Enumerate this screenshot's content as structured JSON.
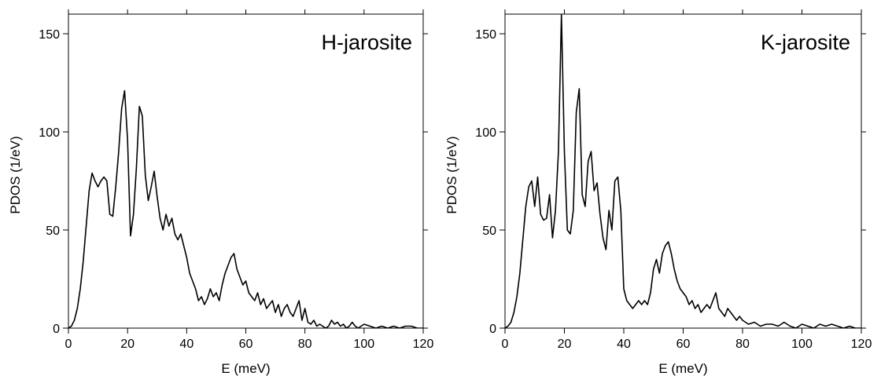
{
  "chart_data": [
    {
      "type": "line",
      "title": "H-jarosite",
      "xlabel": "E (meV)",
      "ylabel": "PDOS (1/eV)",
      "xlim": [
        0,
        120
      ],
      "ylim": [
        0,
        160
      ],
      "xticks": [
        0,
        20,
        40,
        60,
        80,
        100,
        120
      ],
      "yticks": [
        0,
        50,
        100,
        150
      ],
      "grid": false,
      "legend": "none",
      "series": [
        {
          "x": [
            0,
            1,
            2,
            3,
            4,
            5,
            6,
            7,
            8,
            9,
            10,
            11,
            12,
            13,
            14,
            15,
            16,
            17,
            18,
            19,
            20,
            21,
            22,
            23,
            24,
            25,
            26,
            27,
            28,
            29,
            30,
            31,
            32,
            33,
            34,
            35,
            36,
            37,
            38,
            39,
            40,
            41,
            42,
            43,
            44,
            45,
            46,
            47,
            48,
            49,
            50,
            51,
            52,
            53,
            54,
            55,
            56,
            57,
            58,
            59,
            60,
            61,
            62,
            63,
            64,
            65,
            66,
            67,
            68,
            69,
            70,
            71,
            72,
            73,
            74,
            75,
            76,
            77,
            78,
            79,
            80,
            81,
            82,
            83,
            84,
            85,
            86,
            87,
            88,
            89,
            90,
            91,
            92,
            93,
            94,
            95,
            96,
            97,
            98,
            99,
            100,
            102,
            104,
            106,
            108,
            110,
            112,
            114,
            116,
            118,
            120
          ],
          "y": [
            0,
            1,
            4,
            10,
            20,
            34,
            52,
            70,
            79,
            75,
            72,
            75,
            77,
            75,
            58,
            57,
            72,
            90,
            112,
            121,
            96,
            47,
            58,
            82,
            113,
            108,
            78,
            65,
            72,
            80,
            67,
            56,
            50,
            58,
            52,
            56,
            48,
            45,
            48,
            42,
            36,
            28,
            24,
            20,
            14,
            16,
            12,
            15,
            20,
            16,
            18,
            14,
            22,
            28,
            32,
            36,
            38,
            30,
            26,
            22,
            24,
            18,
            16,
            14,
            18,
            12,
            15,
            10,
            12,
            14,
            8,
            12,
            6,
            10,
            12,
            8,
            6,
            10,
            14,
            4,
            10,
            3,
            2,
            4,
            1,
            2,
            1,
            0,
            1,
            4,
            2,
            3,
            1,
            2,
            0,
            1,
            3,
            1,
            0,
            1,
            2,
            1,
            0,
            1,
            0,
            1,
            0,
            1,
            1,
            0,
            0
          ]
        }
      ]
    },
    {
      "type": "line",
      "title": "K-jarosite",
      "xlabel": "E (meV)",
      "ylabel": "PDOS (1/eV)",
      "xlim": [
        0,
        120
      ],
      "ylim": [
        0,
        160
      ],
      "xticks": [
        0,
        20,
        40,
        60,
        80,
        100,
        120
      ],
      "yticks": [
        0,
        50,
        100,
        150
      ],
      "grid": false,
      "legend": "none",
      "series": [
        {
          "x": [
            0,
            1,
            2,
            3,
            4,
            5,
            6,
            7,
            8,
            9,
            10,
            11,
            12,
            13,
            14,
            15,
            16,
            17,
            18,
            19,
            20,
            21,
            22,
            23,
            24,
            25,
            26,
            27,
            28,
            29,
            30,
            31,
            32,
            33,
            34,
            35,
            36,
            37,
            38,
            39,
            40,
            41,
            42,
            43,
            44,
            45,
            46,
            47,
            48,
            49,
            50,
            51,
            52,
            53,
            54,
            55,
            56,
            57,
            58,
            59,
            60,
            61,
            62,
            63,
            64,
            65,
            66,
            67,
            68,
            69,
            70,
            71,
            72,
            73,
            74,
            75,
            76,
            77,
            78,
            79,
            80,
            82,
            84,
            86,
            88,
            90,
            92,
            94,
            96,
            98,
            100,
            102,
            104,
            106,
            108,
            110,
            112,
            114,
            116,
            118,
            120
          ],
          "y": [
            0,
            1,
            3,
            8,
            16,
            28,
            45,
            62,
            72,
            75,
            62,
            77,
            58,
            55,
            56,
            68,
            46,
            60,
            90,
            160,
            90,
            50,
            48,
            60,
            110,
            122,
            68,
            62,
            85,
            90,
            70,
            74,
            58,
            46,
            40,
            60,
            50,
            75,
            77,
            60,
            20,
            14,
            12,
            10,
            12,
            14,
            12,
            14,
            12,
            18,
            30,
            35,
            28,
            38,
            42,
            44,
            38,
            30,
            24,
            20,
            18,
            16,
            12,
            14,
            10,
            12,
            8,
            10,
            12,
            10,
            14,
            18,
            10,
            8,
            6,
            10,
            8,
            6,
            4,
            6,
            4,
            2,
            3,
            1,
            2,
            2,
            1,
            3,
            1,
            0,
            2,
            1,
            0,
            2,
            1,
            2,
            1,
            0,
            1,
            0,
            0
          ]
        }
      ]
    }
  ]
}
